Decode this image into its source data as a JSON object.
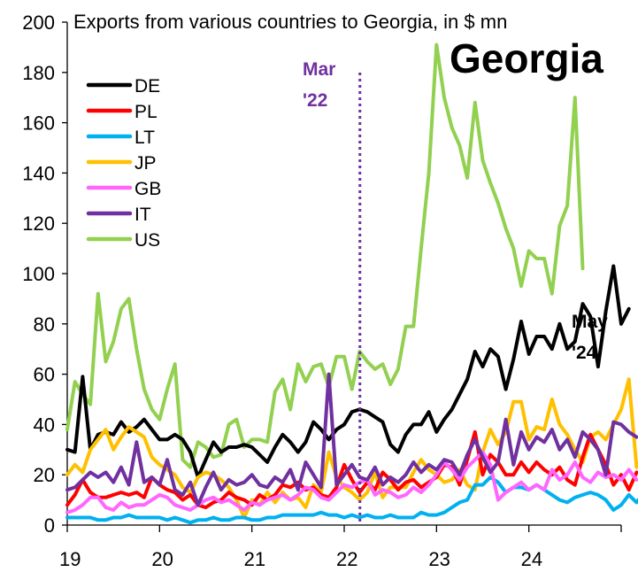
{
  "chart_data": {
    "type": "line",
    "title": "Exports from various countries to Georgia, in $ mn",
    "watermark": "Georgia",
    "xlabel": "",
    "ylabel": "",
    "x_ticks": [
      "19",
      "20",
      "21",
      "22",
      "23",
      "24"
    ],
    "x_range": [
      2019.0,
      2025.0
    ],
    "y_ticks": [
      0,
      20,
      40,
      60,
      80,
      100,
      120,
      140,
      160,
      180,
      200
    ],
    "ylim": [
      0,
      200
    ],
    "grid": false,
    "legend_position": "top-left",
    "annotations": [
      {
        "line1": "Mar",
        "line2": "'22",
        "x": 2022.17,
        "color": "#7030A0"
      },
      {
        "line1": "May",
        "line2": "'24",
        "color": "#000000"
      }
    ],
    "series": [
      {
        "name": "DE",
        "color": "#000000",
        "start": 2019.0,
        "step_months": 1,
        "values": [
          30,
          29,
          59,
          30,
          36,
          37,
          36,
          41,
          37,
          39,
          42,
          38,
          34,
          34,
          36,
          34,
          29,
          19,
          26,
          33,
          29,
          31,
          31,
          32,
          31,
          28,
          25,
          31,
          36,
          33,
          29,
          33,
          41,
          38,
          34,
          38,
          40,
          45,
          46,
          45,
          43,
          41,
          32,
          29,
          36,
          40,
          40,
          45,
          37,
          42,
          46,
          52,
          58,
          69,
          63,
          70,
          67,
          54,
          66,
          81,
          68,
          75,
          75,
          70,
          80,
          70,
          73,
          88,
          83,
          63,
          85,
          103,
          80,
          86
        ]
      },
      {
        "name": "PL",
        "color": "#FF0000",
        "start": 2019.0,
        "step_months": 1,
        "values": [
          8,
          12,
          18,
          13,
          11,
          11,
          12,
          13,
          12,
          13,
          11,
          19,
          16,
          14,
          13,
          10,
          12,
          8,
          7,
          9,
          10,
          13,
          11,
          10,
          8,
          12,
          10,
          12,
          16,
          15,
          17,
          14,
          15,
          12,
          11,
          15,
          24,
          18,
          13,
          17,
          14,
          21,
          18,
          14,
          17,
          18,
          15,
          17,
          19,
          24,
          23,
          16,
          26,
          37,
          20,
          28,
          25,
          20,
          20,
          25,
          21,
          25,
          22,
          20,
          23,
          18,
          16,
          27,
          36,
          30,
          24,
          16,
          20,
          14,
          21
        ]
      },
      {
        "name": "LT",
        "color": "#00B0F0",
        "start": 2019.0,
        "step_months": 1,
        "values": [
          3,
          3,
          3,
          3,
          2,
          2,
          3,
          3,
          4,
          3,
          3,
          3,
          3,
          2,
          3,
          2,
          1,
          2,
          2,
          3,
          2,
          2,
          3,
          3,
          2,
          2,
          3,
          3,
          4,
          4,
          4,
          4,
          4,
          5,
          4,
          4,
          3,
          4,
          3,
          4,
          3,
          3,
          4,
          3,
          3,
          3,
          5,
          4,
          4,
          5,
          7,
          9,
          10,
          16,
          16,
          19,
          17,
          13,
          15,
          15,
          14,
          16,
          14,
          12,
          10,
          9,
          11,
          12,
          13,
          12,
          10,
          6,
          8,
          12,
          9,
          13
        ]
      },
      {
        "name": "JP",
        "color": "#FFC000",
        "start": 2019.0,
        "step_months": 1,
        "values": [
          20,
          24,
          21,
          30,
          34,
          38,
          30,
          35,
          39,
          37,
          35,
          27,
          24,
          22,
          20,
          15,
          13,
          19,
          21,
          20,
          18,
          15,
          10,
          3,
          10,
          8,
          13,
          9,
          13,
          10,
          11,
          7,
          16,
          13,
          29,
          19,
          15,
          13,
          10,
          13,
          21,
          11,
          15,
          15,
          15,
          21,
          26,
          22,
          20,
          17,
          18,
          22,
          16,
          14,
          29,
          38,
          32,
          37,
          49,
          49,
          34,
          39,
          38,
          50,
          40,
          36,
          30,
          25,
          35,
          37,
          34,
          40,
          46,
          58,
          23
        ]
      },
      {
        "name": "GB",
        "color": "#FF66FF",
        "start": 2019.0,
        "step_months": 1,
        "values": [
          5,
          6,
          8,
          11,
          11,
          7,
          6,
          9,
          7,
          8,
          8,
          10,
          12,
          11,
          8,
          7,
          6,
          8,
          10,
          11,
          9,
          10,
          8,
          6,
          9,
          8,
          10,
          11,
          12,
          10,
          12,
          15,
          14,
          11,
          10,
          13,
          16,
          15,
          17,
          18,
          12,
          14,
          13,
          11,
          12,
          15,
          13,
          16,
          20,
          25,
          22,
          18,
          23,
          26,
          29,
          24,
          10,
          13,
          15,
          17,
          14,
          16,
          14,
          22,
          18,
          20,
          25,
          19,
          17,
          21,
          19,
          20,
          18,
          22,
          18
        ]
      },
      {
        "name": "IT",
        "color": "#7030A0",
        "start": 2019.0,
        "step_months": 1,
        "values": [
          14,
          15,
          18,
          21,
          19,
          21,
          17,
          23,
          16,
          33,
          17,
          19,
          16,
          26,
          14,
          12,
          17,
          8,
          15,
          21,
          14,
          18,
          16,
          17,
          20,
          16,
          15,
          19,
          17,
          22,
          14,
          25,
          20,
          15,
          60,
          16,
          20,
          24,
          19,
          18,
          23,
          16,
          19,
          17,
          20,
          25,
          21,
          24,
          22,
          26,
          25,
          20,
          28,
          34,
          27,
          21,
          25,
          42,
          24,
          37,
          30,
          35,
          33,
          38,
          30,
          34,
          27,
          37,
          34,
          30,
          20,
          41,
          40,
          37,
          35
        ]
      },
      {
        "name": "US",
        "color": "#92D050",
        "start": 2019.0,
        "step_months": 1,
        "values": [
          38,
          57,
          52,
          48,
          92,
          65,
          73,
          86,
          90,
          70,
          54,
          46,
          42,
          54,
          64,
          26,
          23,
          33,
          31,
          27,
          28,
          40,
          42,
          31,
          34,
          34,
          33,
          53,
          58,
          46,
          64,
          57,
          63,
          64,
          55,
          67,
          67,
          54,
          69,
          65,
          62,
          64,
          56,
          62,
          79,
          79,
          110,
          140,
          191,
          170,
          158,
          151,
          138,
          168,
          145,
          136,
          128,
          118,
          110,
          95,
          109,
          106,
          106,
          92,
          119,
          127,
          170,
          102
        ]
      }
    ]
  }
}
